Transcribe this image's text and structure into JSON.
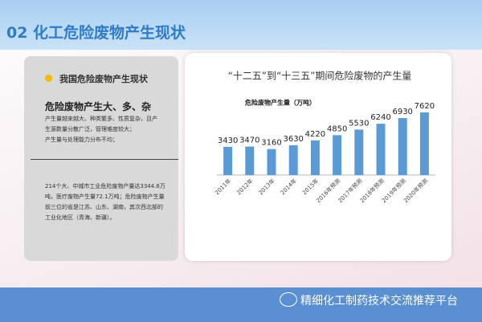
{
  "header": {
    "title": "02 化工危险废物产生现状"
  },
  "panel": {
    "heading": "我国危险废物产生现状",
    "subheading": "危险废物产生大、多、杂",
    "lines": [
      "产生量越来越大、种类繁多、性质复杂，且产",
      "生源数量分散广泛，管理难度较大；",
      "产生量与处理能力分布不均；"
    ],
    "paragraph": [
      "214个大、中城市工业危险废物产量达3344.6万",
      "吨，医疗废物产生量72.1万吨；危险废物产生量",
      "前三位的省是江苏、山东、湖南，其次西北部的",
      "工业化地区（青海、新疆）。"
    ]
  },
  "chart_data": {
    "type": "bar",
    "title": "“十二五”到“十三五”期间危险废物的产生量",
    "subtitle": "危险废物产生量（万吨）",
    "categories": [
      "2011年",
      "2012年",
      "2013年",
      "2014年",
      "2015年",
      "2016年预测",
      "2017年预测",
      "2018年预测",
      "2019年预测",
      "2020年预测"
    ],
    "values": [
      3430,
      3470,
      3160,
      3630,
      4220,
      4850,
      5530,
      6240,
      6930,
      7620
    ],
    "color": "#5b9bd5"
  },
  "footer": {
    "brand": "精细化工制药技术交流推荐平台"
  }
}
